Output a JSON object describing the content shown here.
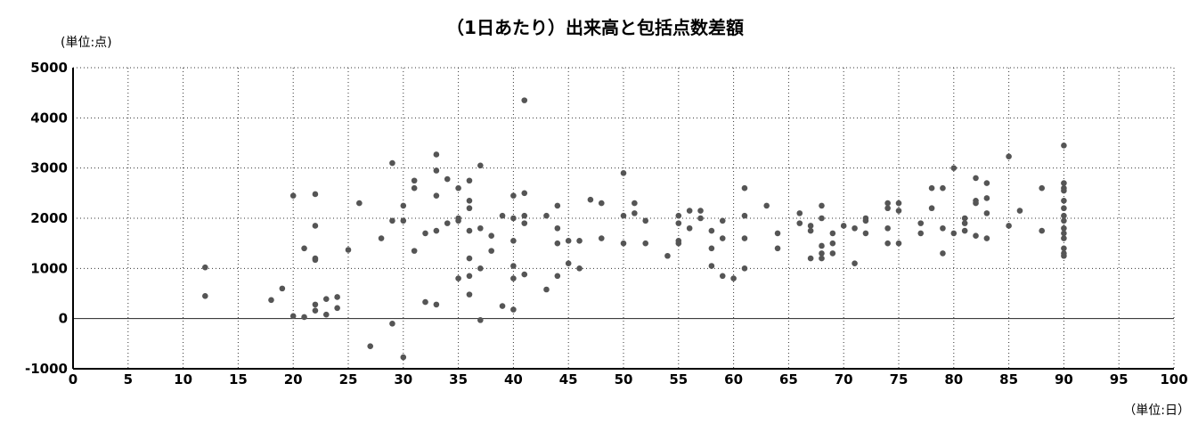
{
  "chart_data": {
    "type": "scatter",
    "title": "（1日あたり）出来高と包括点数差額",
    "ylabel": "(単位:点)",
    "xlabel": "（単位:日）",
    "xlim": [
      0,
      100
    ],
    "ylim": [
      -1000,
      5000
    ],
    "x_ticks": [
      0,
      5,
      10,
      15,
      20,
      25,
      30,
      35,
      40,
      45,
      50,
      55,
      60,
      65,
      70,
      75,
      80,
      85,
      90,
      95,
      100
    ],
    "y_ticks": [
      -1000,
      0,
      1000,
      2000,
      3000,
      4000,
      5000
    ],
    "grid": true,
    "legend": "none",
    "marker_color": "#555555",
    "points": [
      [
        12,
        1020
      ],
      [
        12,
        450
      ],
      [
        18,
        370
      ],
      [
        19,
        600
      ],
      [
        20,
        2450
      ],
      [
        20,
        50
      ],
      [
        21,
        1400
      ],
      [
        21,
        30
      ],
      [
        22,
        2480
      ],
      [
        22,
        1850
      ],
      [
        22,
        1200
      ],
      [
        22,
        1170
      ],
      [
        22,
        280
      ],
      [
        22,
        160
      ],
      [
        23,
        390
      ],
      [
        23,
        80
      ],
      [
        24,
        430
      ],
      [
        24,
        210
      ],
      [
        25,
        1370
      ],
      [
        26,
        2300
      ],
      [
        27,
        -550
      ],
      [
        28,
        1600
      ],
      [
        29,
        3100
      ],
      [
        29,
        1950
      ],
      [
        29,
        -100
      ],
      [
        30,
        2250
      ],
      [
        30,
        1950
      ],
      [
        30,
        -770
      ],
      [
        31,
        2750
      ],
      [
        31,
        2600
      ],
      [
        31,
        1350
      ],
      [
        32,
        1700
      ],
      [
        32,
        330
      ],
      [
        33,
        3270
      ],
      [
        33,
        2950
      ],
      [
        33,
        2450
      ],
      [
        33,
        1750
      ],
      [
        33,
        280
      ],
      [
        34,
        2780
      ],
      [
        34,
        1900
      ],
      [
        35,
        2600
      ],
      [
        35,
        2000
      ],
      [
        35,
        1950
      ],
      [
        35,
        800
      ],
      [
        36,
        2750
      ],
      [
        36,
        2350
      ],
      [
        36,
        2200
      ],
      [
        36,
        1750
      ],
      [
        36,
        1200
      ],
      [
        36,
        850
      ],
      [
        36,
        480
      ],
      [
        37,
        3050
      ],
      [
        37,
        1800
      ],
      [
        37,
        1000
      ],
      [
        37,
        -30
      ],
      [
        38,
        1650
      ],
      [
        38,
        1350
      ],
      [
        39,
        2050
      ],
      [
        39,
        250
      ],
      [
        40,
        2450
      ],
      [
        40,
        2000
      ],
      [
        40,
        1550
      ],
      [
        40,
        1050
      ],
      [
        40,
        800
      ],
      [
        40,
        180
      ],
      [
        41,
        4350
      ],
      [
        41,
        2500
      ],
      [
        41,
        2050
      ],
      [
        41,
        1900
      ],
      [
        41,
        880
      ],
      [
        43,
        2050
      ],
      [
        43,
        580
      ],
      [
        44,
        2250
      ],
      [
        44,
        1800
      ],
      [
        44,
        1500
      ],
      [
        44,
        850
      ],
      [
        45,
        1550
      ],
      [
        45,
        1100
      ],
      [
        46,
        1550
      ],
      [
        46,
        1000
      ],
      [
        47,
        2370
      ],
      [
        48,
        2300
      ],
      [
        48,
        1600
      ],
      [
        50,
        2900
      ],
      [
        50,
        2050
      ],
      [
        50,
        1500
      ],
      [
        51,
        2300
      ],
      [
        51,
        2100
      ],
      [
        52,
        1950
      ],
      [
        52,
        1500
      ],
      [
        54,
        1250
      ],
      [
        55,
        2050
      ],
      [
        55,
        1900
      ],
      [
        55,
        1550
      ],
      [
        55,
        1500
      ],
      [
        56,
        2150
      ],
      [
        56,
        1800
      ],
      [
        57,
        2150
      ],
      [
        57,
        2000
      ],
      [
        58,
        1750
      ],
      [
        58,
        1400
      ],
      [
        58,
        1050
      ],
      [
        59,
        1950
      ],
      [
        59,
        1600
      ],
      [
        59,
        850
      ],
      [
        60,
        800
      ],
      [
        61,
        2600
      ],
      [
        61,
        2050
      ],
      [
        61,
        1600
      ],
      [
        61,
        1000
      ],
      [
        63,
        2250
      ],
      [
        64,
        1700
      ],
      [
        64,
        1400
      ],
      [
        66,
        2100
      ],
      [
        66,
        1900
      ],
      [
        67,
        1850
      ],
      [
        67,
        1750
      ],
      [
        67,
        1200
      ],
      [
        68,
        2250
      ],
      [
        68,
        2000
      ],
      [
        68,
        1450
      ],
      [
        68,
        1300
      ],
      [
        68,
        1200
      ],
      [
        69,
        1700
      ],
      [
        69,
        1500
      ],
      [
        69,
        1300
      ],
      [
        70,
        1850
      ],
      [
        71,
        1800
      ],
      [
        71,
        1100
      ],
      [
        72,
        2000
      ],
      [
        72,
        1950
      ],
      [
        72,
        1700
      ],
      [
        74,
        2300
      ],
      [
        74,
        2200
      ],
      [
        74,
        1800
      ],
      [
        74,
        1500
      ],
      [
        75,
        2300
      ],
      [
        75,
        2150
      ],
      [
        75,
        1500
      ],
      [
        77,
        1900
      ],
      [
        77,
        1700
      ],
      [
        78,
        2600
      ],
      [
        78,
        2200
      ],
      [
        79,
        2600
      ],
      [
        79,
        1800
      ],
      [
        79,
        1300
      ],
      [
        80,
        3000
      ],
      [
        80,
        1700
      ],
      [
        81,
        2000
      ],
      [
        81,
        1900
      ],
      [
        81,
        1750
      ],
      [
        82,
        2800
      ],
      [
        82,
        2350
      ],
      [
        82,
        2300
      ],
      [
        82,
        1650
      ],
      [
        83,
        2700
      ],
      [
        83,
        2400
      ],
      [
        83,
        2100
      ],
      [
        83,
        1600
      ],
      [
        85,
        3230
      ],
      [
        85,
        1850
      ],
      [
        86,
        2150
      ],
      [
        88,
        2600
      ],
      [
        88,
        1750
      ],
      [
        90,
        3450
      ],
      [
        90,
        2700
      ],
      [
        90,
        2600
      ],
      [
        90,
        2550
      ],
      [
        90,
        2350
      ],
      [
        90,
        2200
      ],
      [
        90,
        2050
      ],
      [
        90,
        1950
      ],
      [
        90,
        1800
      ],
      [
        90,
        1700
      ],
      [
        90,
        1600
      ],
      [
        90,
        1400
      ],
      [
        90,
        1300
      ],
      [
        90,
        1250
      ]
    ]
  }
}
